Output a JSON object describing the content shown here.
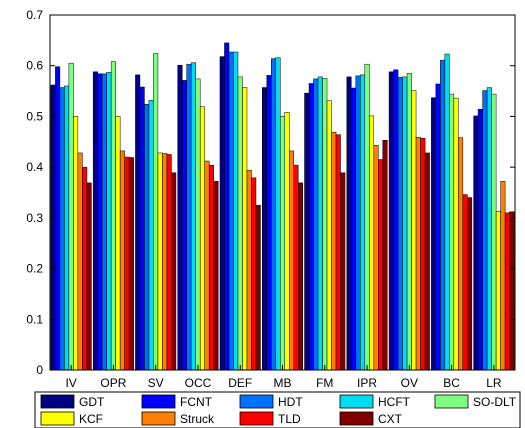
{
  "chart_data": {
    "type": "bar",
    "title": "",
    "xlabel": "",
    "ylabel": "",
    "ylim": [
      0,
      0.7
    ],
    "yticks": [
      "0",
      "0.1",
      "0.2",
      "0.3",
      "0.4",
      "0.5",
      "0.6",
      "0.7"
    ],
    "grid": false,
    "legend_position": "bottom",
    "categories": [
      "IV",
      "OPR",
      "SV",
      "OCC",
      "DEF",
      "MB",
      "FM",
      "IPR",
      "OV",
      "BC",
      "LR"
    ],
    "series": [
      {
        "name": "GDT",
        "color": "#000080",
        "values": [
          0.562,
          0.588,
          0.582,
          0.601,
          0.618,
          0.557,
          0.546,
          0.578,
          0.588,
          0.537,
          0.501
        ]
      },
      {
        "name": "FCNT",
        "color": "#0000ff",
        "values": [
          0.598,
          0.584,
          0.558,
          0.571,
          0.645,
          0.581,
          0.565,
          0.556,
          0.592,
          0.564,
          0.514
        ]
      },
      {
        "name": "HDT",
        "color": "#0070ff",
        "values": [
          0.557,
          0.584,
          0.524,
          0.603,
          0.627,
          0.614,
          0.574,
          0.58,
          0.577,
          0.611,
          0.551
        ]
      },
      {
        "name": "HCFT",
        "color": "#00ddee",
        "values": [
          0.56,
          0.587,
          0.532,
          0.606,
          0.627,
          0.616,
          0.578,
          0.582,
          0.578,
          0.623,
          0.557
        ]
      },
      {
        "name": "SO-DLT",
        "color": "#7fff7f",
        "values": [
          0.605,
          0.608,
          0.624,
          0.574,
          0.578,
          0.5,
          0.575,
          0.603,
          0.585,
          0.544,
          0.544
        ]
      },
      {
        "name": "KCF",
        "color": "#ffff00",
        "values": [
          0.5,
          0.5,
          0.428,
          0.519,
          0.557,
          0.508,
          0.531,
          0.501,
          0.551,
          0.536,
          0.313
        ]
      },
      {
        "name": "Struck",
        "color": "#ff7f00",
        "values": [
          0.428,
          0.432,
          0.427,
          0.412,
          0.394,
          0.432,
          0.469,
          0.443,
          0.459,
          0.458,
          0.372
        ]
      },
      {
        "name": "TLD",
        "color": "#ff0000",
        "values": [
          0.4,
          0.42,
          0.425,
          0.404,
          0.379,
          0.404,
          0.464,
          0.415,
          0.457,
          0.346,
          0.31
        ]
      },
      {
        "name": "CXT",
        "color": "#800000",
        "values": [
          0.369,
          0.419,
          0.389,
          0.372,
          0.325,
          0.369,
          0.389,
          0.453,
          0.428,
          0.34,
          0.312
        ]
      }
    ]
  }
}
